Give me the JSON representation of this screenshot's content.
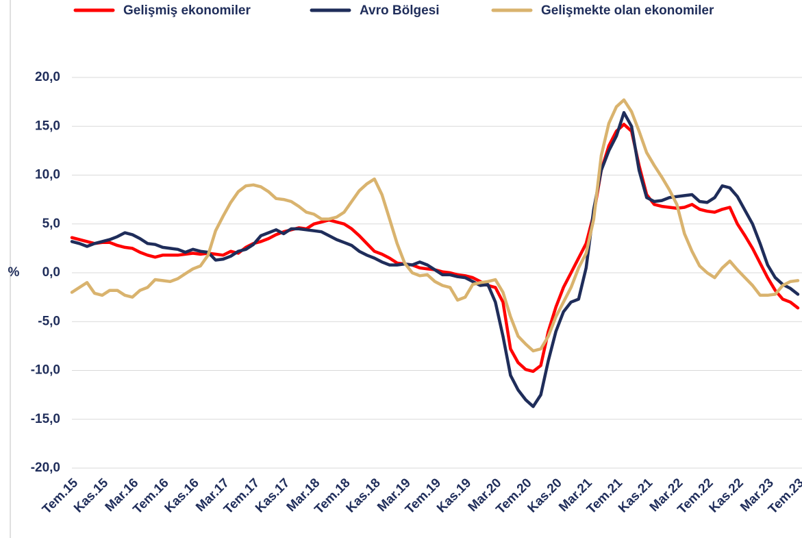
{
  "chart_data": {
    "type": "line",
    "ylabel": "%",
    "categories": [
      "Tem.15",
      null,
      null,
      null,
      "Kas.15",
      null,
      null,
      null,
      "Mar.16",
      null,
      null,
      null,
      "Tem.16",
      null,
      null,
      null,
      "Kas.16",
      null,
      null,
      null,
      "Mar.17",
      null,
      null,
      null,
      "Tem.17",
      null,
      null,
      null,
      "Kas.17",
      null,
      null,
      null,
      "Mar.18",
      null,
      null,
      null,
      "Tem.18",
      null,
      null,
      null,
      "Kas.18",
      null,
      null,
      null,
      "Mar.19",
      null,
      null,
      null,
      "Tem.19",
      null,
      null,
      null,
      "Kas.19",
      null,
      null,
      null,
      "Mar.20",
      null,
      null,
      null,
      "Tem.20",
      null,
      null,
      null,
      "Kas.20",
      null,
      null,
      null,
      "Mar.21",
      null,
      null,
      null,
      "Tem.21",
      null,
      null,
      null,
      "Kas.21",
      null,
      null,
      null,
      "Mar.22",
      null,
      null,
      null,
      "Tem.22",
      null,
      null,
      null,
      "Kas.22",
      null,
      null,
      null,
      "Mar.23",
      null,
      null,
      null,
      "Tem.23"
    ],
    "series": [
      {
        "name": "Gelişmiş ekonomiler",
        "color": "#ff0000",
        "values": [
          3.6,
          3.4,
          3.2,
          3.0,
          3.1,
          3.1,
          2.8,
          2.6,
          2.5,
          2.1,
          1.8,
          1.6,
          1.8,
          1.8,
          1.8,
          1.9,
          2.0,
          1.9,
          2.0,
          1.9,
          1.8,
          2.2,
          2.0,
          2.6,
          3.0,
          3.2,
          3.5,
          3.9,
          4.2,
          4.4,
          4.6,
          4.5,
          5.0,
          5.2,
          5.4,
          5.2,
          5.0,
          4.5,
          3.8,
          3.0,
          2.2,
          1.9,
          1.5,
          1.0,
          0.9,
          0.8,
          0.5,
          0.4,
          0.3,
          0.1,
          0.0,
          -0.2,
          -0.3,
          -0.5,
          -0.9,
          -1.3,
          -1.5,
          -3.0,
          -7.8,
          -9.2,
          -9.9,
          -10.1,
          -9.5,
          -6.0,
          -3.5,
          -1.5,
          0.0,
          1.5,
          3.0,
          6.0,
          10.5,
          13.0,
          14.5,
          15.2,
          14.5,
          11.0,
          8.0,
          7.0,
          6.8,
          6.7,
          6.6,
          6.7,
          7.0,
          6.5,
          6.3,
          6.2,
          6.5,
          6.7,
          5.0,
          3.8,
          2.5,
          1.0,
          -0.5,
          -1.8,
          -2.7,
          -3.0,
          -3.6
        ]
      },
      {
        "name": "Avro Bölgesi",
        "color": "#1f2d5a",
        "values": [
          3.2,
          3.0,
          2.7,
          3.0,
          3.2,
          3.4,
          3.7,
          4.1,
          3.9,
          3.5,
          3.0,
          2.9,
          2.6,
          2.5,
          2.4,
          2.1,
          2.4,
          2.2,
          2.1,
          1.3,
          1.4,
          1.7,
          2.2,
          2.4,
          2.9,
          3.8,
          4.1,
          4.4,
          4.0,
          4.5,
          4.5,
          4.4,
          4.3,
          4.2,
          3.8,
          3.4,
          3.1,
          2.8,
          2.2,
          1.8,
          1.5,
          1.1,
          0.8,
          0.8,
          0.9,
          0.8,
          1.1,
          0.8,
          0.3,
          -0.2,
          -0.2,
          -0.4,
          -0.5,
          -0.9,
          -1.3,
          -1.2,
          -3.0,
          -6.5,
          -10.5,
          -12.0,
          -13.0,
          -13.7,
          -12.5,
          -9.0,
          -6.0,
          -4.0,
          -3.0,
          -2.7,
          0.5,
          6.5,
          10.5,
          12.5,
          14.0,
          16.4,
          15.0,
          10.5,
          7.7,
          7.3,
          7.4,
          7.7,
          7.8,
          7.9,
          8.0,
          7.3,
          7.2,
          7.7,
          8.9,
          8.7,
          7.8,
          6.4,
          5.0,
          3.0,
          0.8,
          -0.5,
          -1.2,
          -1.6,
          -2.2
        ]
      },
      {
        "name": "Gelişmekte olan ekonomiler",
        "color": "#d9b36e",
        "values": [
          -2.0,
          -1.5,
          -1.0,
          -2.1,
          -2.3,
          -1.8,
          -1.8,
          -2.3,
          -2.5,
          -1.8,
          -1.5,
          -0.7,
          -0.8,
          -0.9,
          -0.6,
          -0.1,
          0.4,
          0.7,
          1.8,
          4.3,
          5.8,
          7.2,
          8.3,
          8.9,
          9.0,
          8.8,
          8.3,
          7.6,
          7.5,
          7.3,
          6.8,
          6.2,
          6.0,
          5.5,
          5.5,
          5.7,
          6.2,
          7.3,
          8.4,
          9.1,
          9.6,
          8.0,
          5.5,
          3.0,
          1.0,
          0.0,
          -0.3,
          -0.2,
          -0.9,
          -1.3,
          -1.5,
          -2.8,
          -2.5,
          -1.2,
          -1.0,
          -0.9,
          -0.7,
          -2.0,
          -4.5,
          -6.5,
          -7.3,
          -8.0,
          -7.8,
          -6.5,
          -4.5,
          -3.0,
          -1.5,
          0.5,
          2.0,
          5.5,
          12.0,
          15.3,
          17.0,
          17.7,
          16.5,
          14.5,
          12.3,
          11.0,
          9.8,
          8.5,
          7.0,
          4.0,
          2.2,
          0.7,
          0.0,
          -0.5,
          0.5,
          1.2,
          0.3,
          -0.5,
          -1.3,
          -2.3,
          -2.3,
          -2.2,
          -1.3,
          -0.9,
          -0.8
        ]
      }
    ],
    "ylim": [
      -20,
      20
    ],
    "yticks": [
      {
        "value": -20,
        "label": "-20,0"
      },
      {
        "value": -15,
        "label": "-15,0"
      },
      {
        "value": -10,
        "label": "-10,0"
      },
      {
        "value": -5,
        "label": "-5,0"
      },
      {
        "value": 0,
        "label": "0,0"
      },
      {
        "value": 5,
        "label": "5,0"
      },
      {
        "value": 10,
        "label": "10,0"
      },
      {
        "value": 15,
        "label": "15,0"
      },
      {
        "value": 20,
        "label": "20,0"
      }
    ],
    "grid": true
  }
}
